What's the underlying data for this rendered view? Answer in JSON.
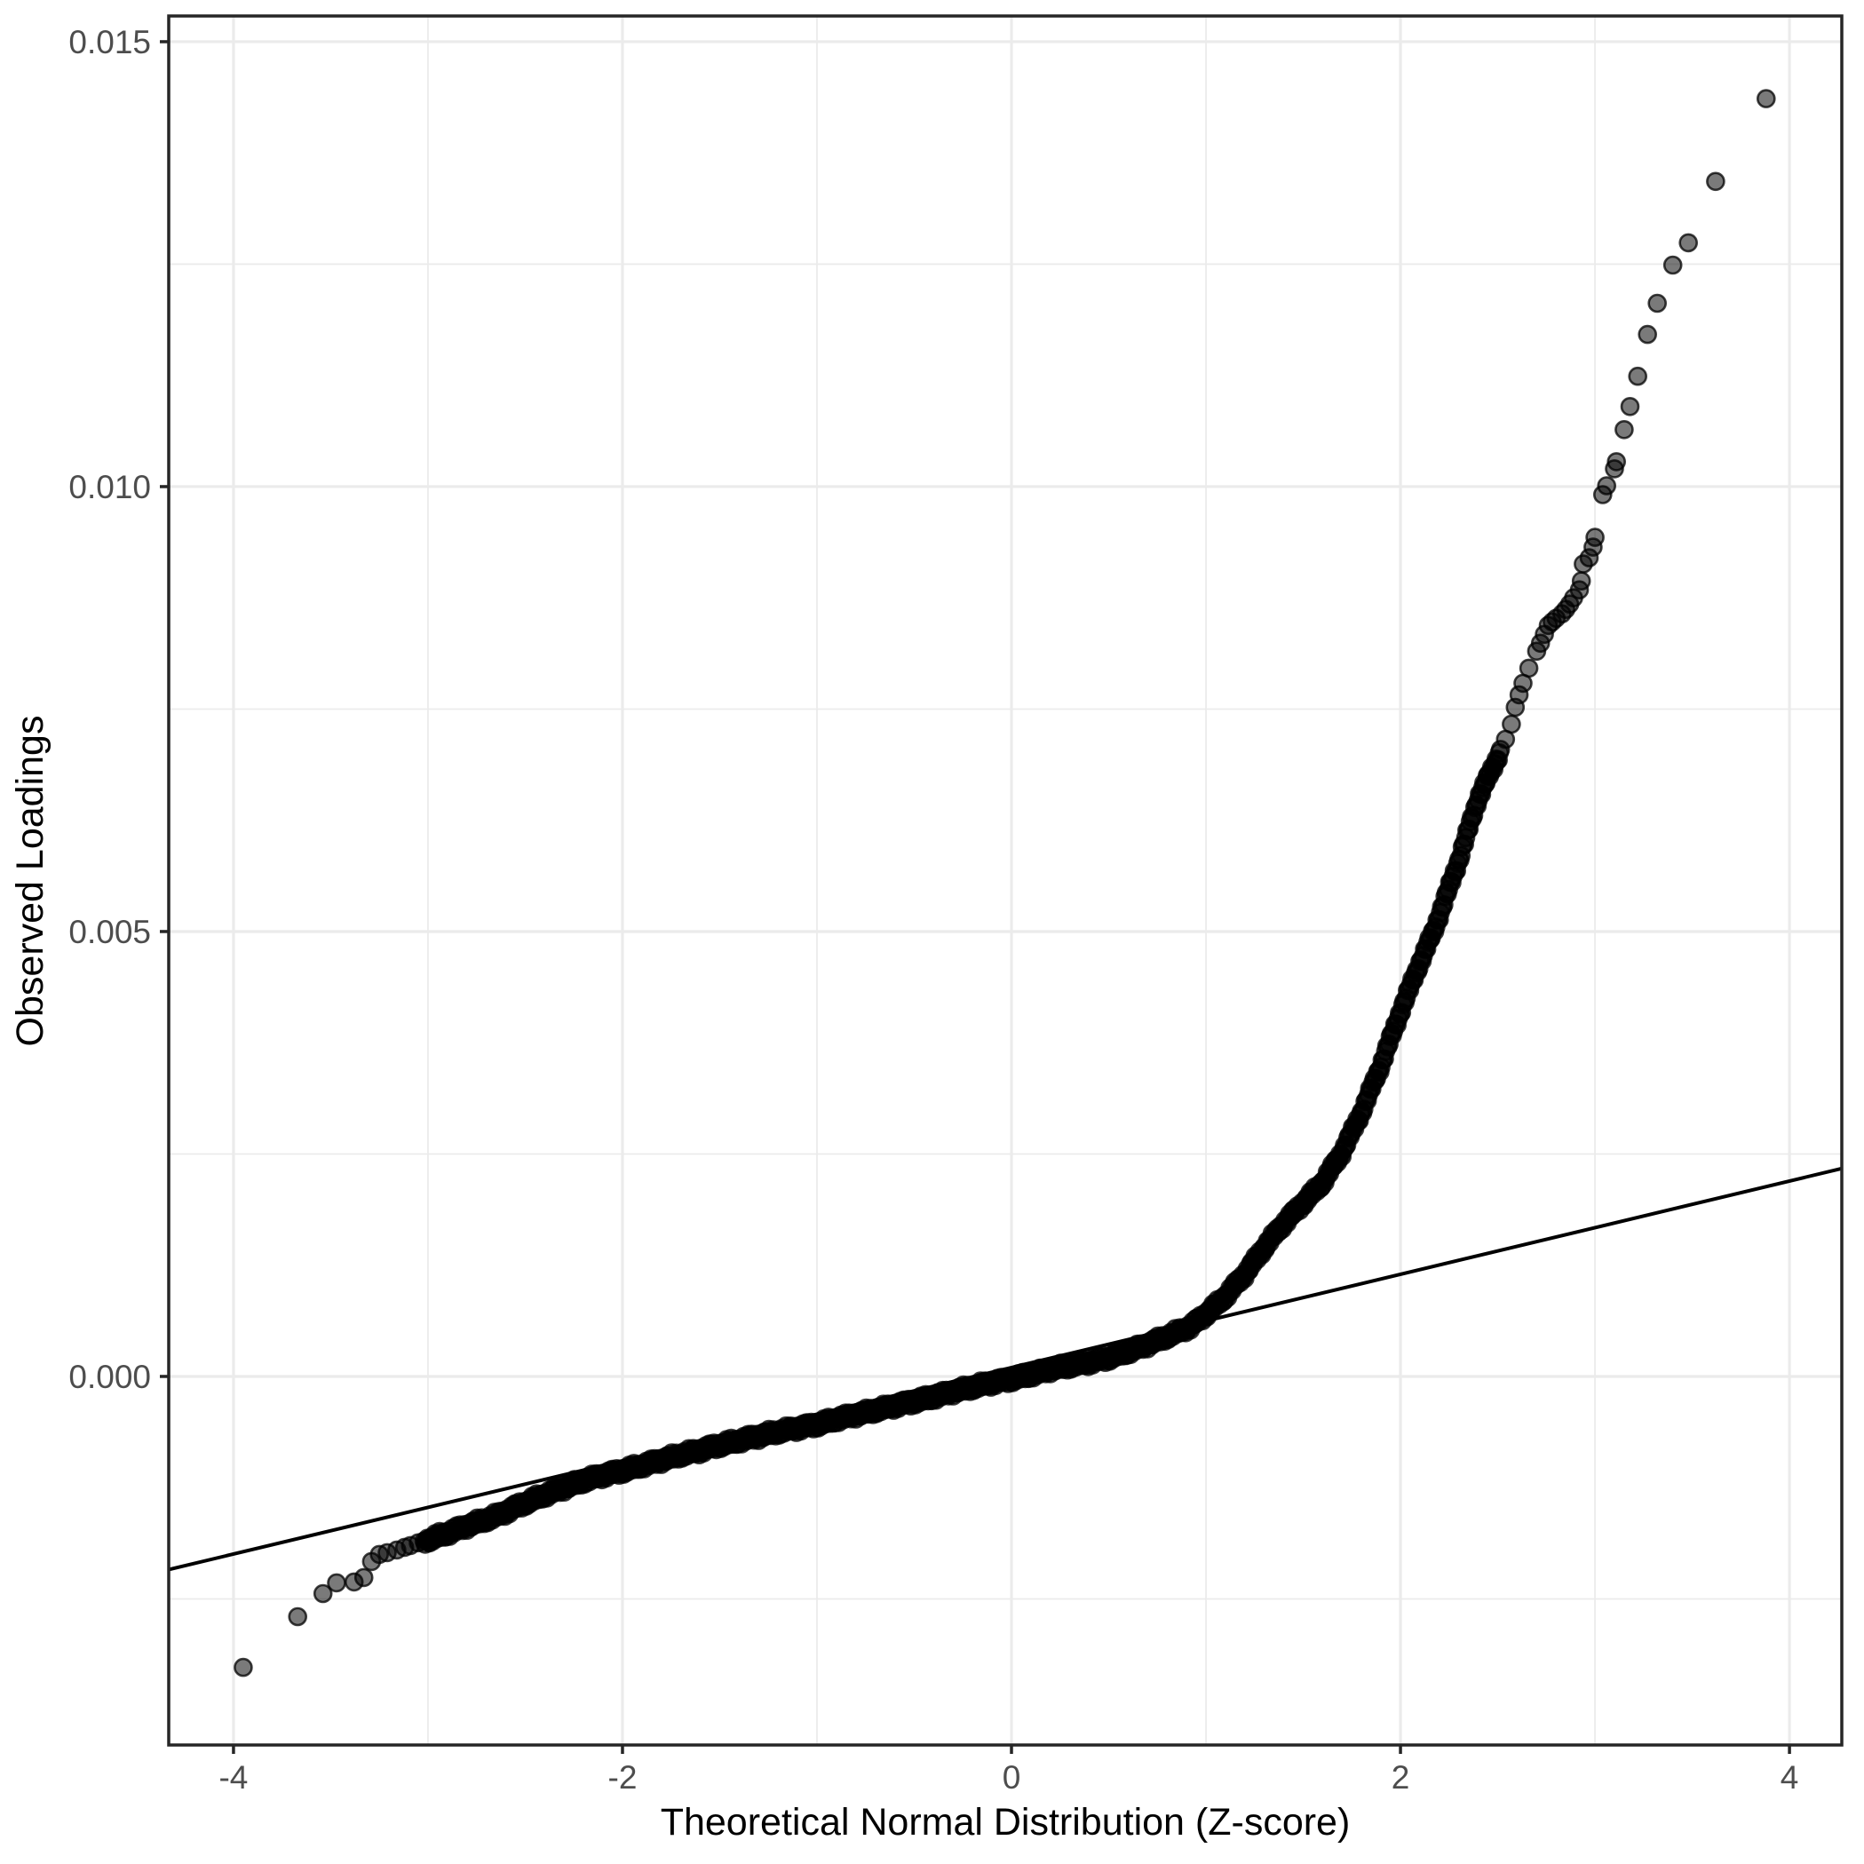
{
  "chart_data": {
    "type": "scatter",
    "title": "",
    "xlabel": "Theoretical Normal Distribution (Z-score)",
    "ylabel": "Observed Loadings",
    "xlim": [
      -4.333,
      4.269
    ],
    "ylim": [
      -0.004142,
      0.015289
    ],
    "grid": "on",
    "legend": "none",
    "x_ticks": {
      "major": [
        -4,
        -2,
        0,
        2,
        4
      ],
      "labels": [
        "-4",
        "-2",
        "0",
        "2",
        "4"
      ],
      "minor": [
        -3,
        -1,
        1,
        3
      ]
    },
    "y_ticks": {
      "major": [
        0.0,
        0.005,
        0.01,
        0.015
      ],
      "labels": [
        "0.000",
        "0.005",
        "0.010",
        "0.015"
      ],
      "minor": [
        -0.0025,
        0.0025,
        0.0075,
        0.0125
      ]
    },
    "reference_line": {
      "intercept": 0.0001,
      "slope": 0.000524
    },
    "band_anchors": [
      [
        -3.02,
        -0.00185
      ],
      [
        -2.9,
        -0.00176
      ],
      [
        -2.8,
        -0.00168
      ],
      [
        -2.64,
        -0.00156
      ],
      [
        -2.5,
        -0.00142
      ],
      [
        -2.4,
        -0.00133
      ],
      [
        -2.3,
        -0.00125
      ],
      [
        -2.2,
        -0.00117
      ],
      [
        -2.1,
        -0.00111
      ],
      [
        -2.0,
        -0.00106
      ],
      [
        -1.9,
        -0.001
      ],
      [
        -1.8,
        -0.00094
      ],
      [
        -1.7,
        -0.00088
      ],
      [
        -1.6,
        -0.00083
      ],
      [
        -1.5,
        -0.00077
      ],
      [
        -1.4,
        -0.00072
      ],
      [
        -1.3,
        -0.00067
      ],
      [
        -1.2,
        -0.00062
      ],
      [
        -1.1,
        -0.00058
      ],
      [
        -1.0,
        -0.00054
      ],
      [
        -0.9,
        -0.00048
      ],
      [
        -0.8,
        -0.00043
      ],
      [
        -0.7,
        -0.00038
      ],
      [
        -0.6,
        -0.00033
      ],
      [
        -0.5,
        -0.00028
      ],
      [
        -0.4,
        -0.00023
      ],
      [
        -0.3,
        -0.00017
      ],
      [
        -0.2,
        -0.00012
      ],
      [
        -0.1,
        -7e-05
      ],
      [
        0.0,
        -3e-05
      ],
      [
        0.1,
        2e-05
      ],
      [
        0.2,
        8e-05
      ],
      [
        0.3,
        0.00012
      ],
      [
        0.4,
        0.00016
      ],
      [
        0.5,
        0.00021
      ],
      [
        0.6,
        0.00028
      ],
      [
        0.7,
        0.00036
      ],
      [
        0.8,
        0.00045
      ],
      [
        0.92,
        0.00056
      ],
      [
        1.0,
        0.0007
      ],
      [
        1.1,
        0.0009
      ],
      [
        1.2,
        0.00115
      ],
      [
        1.31,
        0.00148
      ],
      [
        1.4,
        0.00172
      ],
      [
        1.5,
        0.00195
      ],
      [
        1.6,
        0.00218
      ],
      [
        1.7,
        0.00252
      ],
      [
        1.8,
        0.00297
      ],
      [
        1.9,
        0.0035
      ],
      [
        2.0,
        0.0041
      ],
      [
        2.1,
        0.00465
      ],
      [
        2.17,
        0.005
      ],
      [
        2.3,
        0.0058
      ],
      [
        2.4,
        0.0065
      ],
      [
        2.52,
        0.00705
      ]
    ],
    "lower_tail_points": [
      [
        -3.95,
        -0.00327
      ],
      [
        -3.67,
        -0.0027
      ],
      [
        -3.54,
        -0.00244
      ],
      [
        -3.47,
        -0.00232
      ],
      [
        -3.38,
        -0.00231
      ],
      [
        -3.33,
        -0.00226
      ],
      [
        -3.29,
        -0.00208
      ],
      [
        -3.25,
        -0.002
      ],
      [
        -3.21,
        -0.00198
      ],
      [
        -3.16,
        -0.00195
      ],
      [
        -3.12,
        -0.00192
      ],
      [
        -3.09,
        -0.0019
      ],
      [
        -3.05,
        -0.00187
      ]
    ],
    "upper_tail_points": [
      [
        2.54,
        0.00716
      ],
      [
        2.57,
        0.00733
      ],
      [
        2.59,
        0.00752
      ],
      [
        2.61,
        0.00766
      ],
      [
        2.63,
        0.00779
      ],
      [
        2.66,
        0.00796
      ],
      [
        2.7,
        0.00815
      ],
      [
        2.72,
        0.00824
      ],
      [
        2.74,
        0.00834
      ],
      [
        2.76,
        0.00844
      ],
      [
        2.78,
        0.00848
      ],
      [
        2.8,
        0.00852
      ],
      [
        2.83,
        0.00857
      ],
      [
        2.85,
        0.00862
      ],
      [
        2.87,
        0.00868
      ],
      [
        2.89,
        0.00875
      ],
      [
        2.92,
        0.00884
      ],
      [
        2.93,
        0.00894
      ],
      [
        2.94,
        0.00913
      ],
      [
        2.97,
        0.0092
      ],
      [
        2.99,
        0.00932
      ],
      [
        3.0,
        0.00943
      ],
      [
        3.04,
        0.00991
      ],
      [
        3.06,
        0.01001
      ],
      [
        3.1,
        0.0102
      ],
      [
        3.11,
        0.01028
      ],
      [
        3.15,
        0.01064
      ],
      [
        3.18,
        0.0109
      ],
      [
        3.22,
        0.01124
      ],
      [
        3.27,
        0.01171
      ],
      [
        3.32,
        0.01206
      ],
      [
        3.4,
        0.01249
      ],
      [
        3.48,
        0.01274
      ],
      [
        3.62,
        0.01343
      ],
      [
        3.88,
        0.01436
      ]
    ],
    "style": {
      "background": "#ffffff",
      "panel_background": "#ffffff",
      "grid_color": "#ebebeb",
      "panel_border_color": "#262626",
      "tick_color": "#262626",
      "tick_label_color": "#4d4d4d",
      "axis_title_color": "#000000",
      "reference_line_color": "#000000",
      "point_color": "#000000",
      "point_fill_opacity": 0.52,
      "point_stroke_opacity": 0.75,
      "point_radius": 9.5
    }
  }
}
